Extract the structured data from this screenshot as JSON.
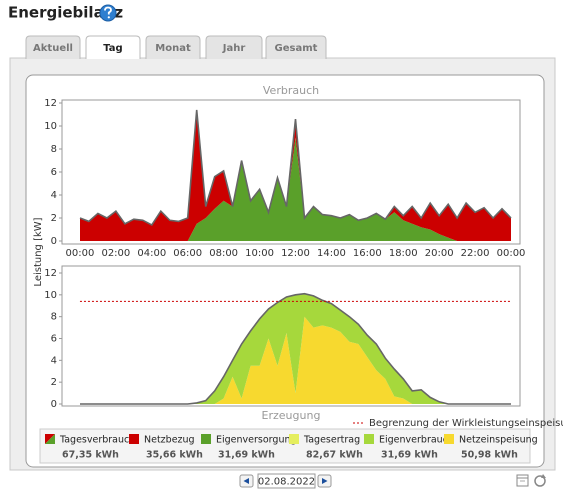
{
  "header": {
    "title": "Energiebilanz"
  },
  "tabs": [
    "Aktuell",
    "Tag",
    "Monat",
    "Jahr",
    "Gesamt"
  ],
  "active_tab": 1,
  "y_axis_label": "Leistung [kW]",
  "chart_data": [
    {
      "type": "area",
      "stacked": true,
      "title": "Verbrauch",
      "x": [
        0,
        0.5,
        1,
        1.5,
        2,
        2.5,
        3,
        3.5,
        4,
        4.5,
        5,
        5.5,
        6,
        6.5,
        7,
        7.5,
        8,
        8.5,
        9,
        9.5,
        10,
        10.5,
        11,
        11.5,
        12,
        12.5,
        13,
        13.5,
        14,
        14.5,
        15,
        15.5,
        16,
        16.5,
        17,
        17.5,
        18,
        18.5,
        19,
        19.5,
        20,
        20.5,
        21,
        21.5,
        22,
        22.5,
        23,
        23.5,
        24
      ],
      "series": [
        {
          "name": "Eigenversorgung",
          "color": "#5aa02a",
          "values": [
            0,
            0,
            0,
            0,
            0,
            0,
            0,
            0,
            0,
            0,
            0,
            0,
            0,
            1.5,
            2.0,
            2.8,
            3.5,
            3.0,
            7.0,
            3.5,
            4.5,
            2.5,
            5.5,
            3.0,
            9.0,
            2.0,
            3.0,
            2.3,
            2.2,
            2.0,
            2.3,
            1.8,
            2.0,
            2.4,
            1.9,
            2.5,
            1.8,
            1.5,
            1.2,
            1.0,
            0.6,
            0.3,
            0,
            0,
            0,
            0,
            0,
            0,
            0
          ]
        },
        {
          "name": "Netzbezug",
          "color": "#cc0000",
          "values": [
            2.0,
            1.7,
            2.4,
            2.0,
            2.6,
            1.5,
            1.9,
            1.8,
            1.4,
            2.6,
            1.8,
            1.7,
            2.0,
            9.9,
            1.0,
            2.8,
            2.6,
            0,
            0,
            0,
            0,
            0,
            0,
            0,
            1.6,
            0,
            0,
            0,
            0,
            0,
            0,
            0,
            0,
            0,
            0,
            0.5,
            0.4,
            1.5,
            0.8,
            2.3,
            1.6,
            2.9,
            2.0,
            3.3,
            2.5,
            2.9,
            2.0,
            2.8,
            2.0
          ]
        }
      ],
      "outline_color": "#666666",
      "xlim": [
        -1,
        24.5
      ],
      "xticks": [
        {
          "value": 0,
          "label": "00:00"
        },
        {
          "value": 2,
          "label": "02:00"
        },
        {
          "value": 4,
          "label": "04:00"
        },
        {
          "value": 6,
          "label": "06:00"
        },
        {
          "value": 8,
          "label": "08:00"
        },
        {
          "value": 10,
          "label": "10:00"
        },
        {
          "value": 12,
          "label": "12:00"
        },
        {
          "value": 14,
          "label": "14:00"
        },
        {
          "value": 16,
          "label": "16:00"
        },
        {
          "value": 18,
          "label": "18:00"
        },
        {
          "value": 20,
          "label": "20:00"
        },
        {
          "value": 22,
          "label": "22:00"
        },
        {
          "value": 24,
          "label": "00:00"
        }
      ],
      "ylim": [
        0,
        12
      ],
      "yticks": [
        0,
        2,
        4,
        6,
        8,
        10,
        12
      ],
      "grid": false
    },
    {
      "type": "area",
      "stacked": true,
      "title": "Erzeugung",
      "x": [
        0,
        0.5,
        1,
        1.5,
        2,
        2.5,
        3,
        3.5,
        4,
        4.5,
        5,
        5.5,
        6,
        6.5,
        7,
        7.5,
        8,
        8.5,
        9,
        9.5,
        10,
        10.5,
        11,
        11.5,
        12,
        12.5,
        13,
        13.5,
        14,
        14.5,
        15,
        15.5,
        16,
        16.5,
        17,
        17.5,
        18,
        18.5,
        19,
        19.5,
        20,
        20.5,
        21,
        21.5,
        22,
        22.5,
        23,
        23.5,
        24
      ],
      "series": [
        {
          "name": "Netzeinspeisung",
          "color": "#f7d92f",
          "values": [
            0,
            0,
            0,
            0,
            0,
            0,
            0,
            0,
            0,
            0,
            0,
            0,
            0,
            0,
            0,
            0,
            0.5,
            2.5,
            0.5,
            3.5,
            3.5,
            6.0,
            3.5,
            6.5,
            1.0,
            8.0,
            7.0,
            7.2,
            7.0,
            6.6,
            5.7,
            5.5,
            4.3,
            3.1,
            2.3,
            0.7,
            0.5,
            0,
            0,
            0,
            0,
            0,
            0,
            0,
            0,
            0,
            0,
            0,
            0
          ]
        },
        {
          "name": "Eigenverbrauch",
          "color": "#a6d83c",
          "values": [
            0,
            0,
            0,
            0,
            0,
            0,
            0,
            0,
            0,
            0,
            0,
            0,
            0,
            0.1,
            0.3,
            1.2,
            2.0,
            1.5,
            5.0,
            3.2,
            4.3,
            2.7,
            5.8,
            3.3,
            9.0,
            2.1,
            2.9,
            2.3,
            2.2,
            2.0,
            2.3,
            1.8,
            2.0,
            2.4,
            1.9,
            2.5,
            1.8,
            1.2,
            1.3,
            0.6,
            0.2,
            0,
            0,
            0,
            0,
            0,
            0,
            0,
            0
          ]
        }
      ],
      "outline_color": "#666666",
      "limit": {
        "value": 9.4,
        "label": "Begrenzung der Wirkleistungseinspeisung",
        "color": "#cc0000"
      },
      "xlim": [
        -1,
        24.5
      ],
      "ylim": [
        0,
        12
      ],
      "yticks": [
        0,
        2,
        4,
        6,
        8,
        10,
        12
      ],
      "grid": false
    }
  ],
  "legend": [
    {
      "name": "Tagesverbrauch",
      "value": "67,35 kWh",
      "color": [
        "#cc0000",
        "#5aa02a"
      ]
    },
    {
      "name": "Netzbezug",
      "value": "35,66 kWh",
      "color": "#cc0000"
    },
    {
      "name": "Eigenversorgung",
      "value": "31,69 kWh",
      "color": "#5aa02a"
    },
    {
      "name": "Tagesertrag",
      "value": "82,67 kWh",
      "color": "#e5ee5e"
    },
    {
      "name": "Eigenverbrauch",
      "value": "31,69 kWh",
      "color": "#a6d83c"
    },
    {
      "name": "Netzeinspeisung",
      "value": "50,98 kWh",
      "color": "#f7d92f"
    }
  ],
  "date": "02.08.2022"
}
